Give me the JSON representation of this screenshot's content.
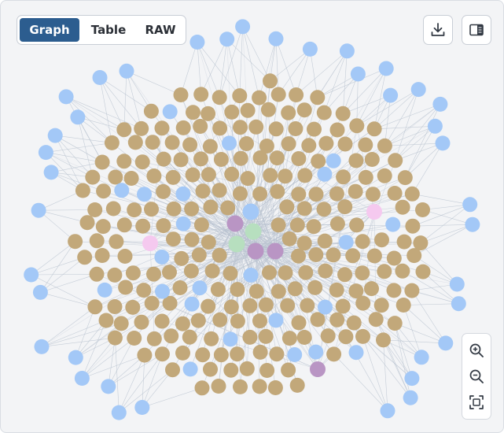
{
  "tabs": [
    {
      "label": "Graph",
      "active": true
    },
    {
      "label": "Table",
      "active": false
    },
    {
      "label": "RAW",
      "active": false
    }
  ],
  "toolbar": {
    "download_icon": "download-icon",
    "panel_icon": "side-panel-icon"
  },
  "zoom_controls": {
    "zoom_in_icon": "zoom-in-icon",
    "zoom_out_icon": "zoom-out-icon",
    "fit_icon": "fit-to-screen-icon"
  },
  "graph": {
    "node_colors": {
      "tan": "#c2a87a",
      "blue": "#a3c8f7",
      "green": "#b7dfbf",
      "purple": "#b995c4",
      "pink": "#f5c9ef"
    },
    "edge_color": "#b9c3d0"
  }
}
